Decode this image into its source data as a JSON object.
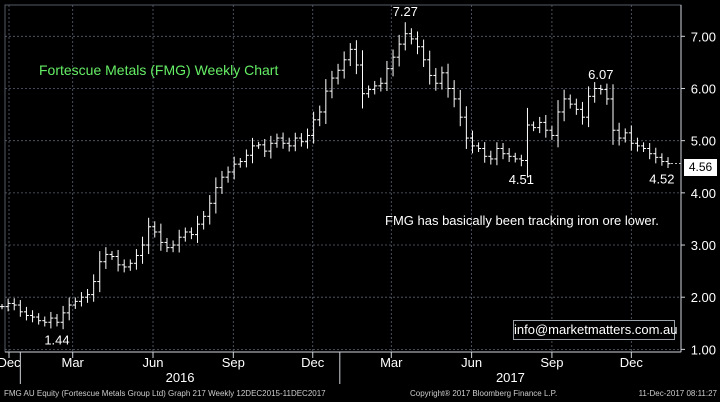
{
  "chart_data": {
    "type": "ohlc",
    "title": "Fortescue Metals (FMG) Weekly Chart",
    "annotation": "FMG has basically been tracking iron ore lower.",
    "watermark_contact": "info@marketmatters.com.au",
    "x_tick_labels": [
      "Dec",
      "Mar",
      "Jun",
      "Sep",
      "Dec",
      "Mar",
      "Jun",
      "Sep",
      "Dec"
    ],
    "year_labels": [
      "2016",
      "2017"
    ],
    "y_tick_labels": [
      "1.00",
      "2.00",
      "3.00",
      "4.00",
      "5.00",
      "6.00",
      "7.00"
    ],
    "ylim": [
      0.95,
      7.6
    ],
    "y_axis_side": "right",
    "grid": true,
    "last_price": "4.56",
    "point_labels": [
      {
        "text": "1.44",
        "week": 9,
        "value": 1.44,
        "position": "below"
      },
      {
        "text": "7.27",
        "week": 66,
        "value": 7.27,
        "position": "above"
      },
      {
        "text": "4.51",
        "week": 85,
        "value": 4.51,
        "position": "below"
      },
      {
        "text": "6.07",
        "week": 98,
        "value": 6.07,
        "position": "above"
      },
      {
        "text": "4.52",
        "week": 108,
        "value": 4.52,
        "position": "below"
      }
    ],
    "series": [
      {
        "start": "2015-12-11",
        "interval": "weekly",
        "close": [
          1.82,
          1.88,
          1.85,
          1.72,
          1.65,
          1.62,
          1.55,
          1.52,
          1.6,
          1.52,
          1.7,
          1.85,
          1.92,
          2.0,
          2.05,
          2.3,
          2.68,
          2.82,
          2.78,
          2.62,
          2.58,
          2.65,
          2.8,
          3.0,
          3.35,
          3.25,
          3.05,
          2.95,
          3.0,
          3.15,
          3.25,
          3.2,
          3.4,
          3.55,
          3.8,
          4.1,
          4.3,
          4.4,
          4.55,
          4.6,
          4.72,
          4.9,
          4.92,
          4.8,
          4.95,
          5.05,
          4.95,
          4.9,
          5.05,
          4.98,
          5.1,
          5.4,
          5.55,
          5.95,
          6.2,
          6.35,
          6.55,
          6.75,
          6.45,
          5.9,
          5.98,
          6.05,
          6.1,
          6.38,
          6.6,
          6.85,
          7.05,
          6.95,
          6.8,
          6.55,
          6.25,
          6.1,
          6.3,
          6.0,
          5.8,
          5.45,
          5.05,
          4.9,
          4.85,
          4.7,
          4.65,
          4.85,
          4.75,
          4.7,
          4.65,
          4.62,
          5.3,
          5.25,
          5.35,
          5.2,
          5.1,
          5.55,
          5.8,
          5.7,
          5.6,
          5.45,
          5.85,
          6.0,
          5.98,
          5.8,
          5.2,
          5.05,
          5.15,
          4.95,
          4.9,
          4.85,
          4.75,
          4.68,
          4.6,
          4.56
        ]
      }
    ]
  },
  "footer": {
    "left": "FMG AU Equity (Fortescue Metals Group Ltd) Graph 217  Weekly 12DEC2015-11DEC2017",
    "middle": "Copyright® 2017 Bloomberg Finance L.P.",
    "right": "11-Dec-2017 08:11:27"
  }
}
